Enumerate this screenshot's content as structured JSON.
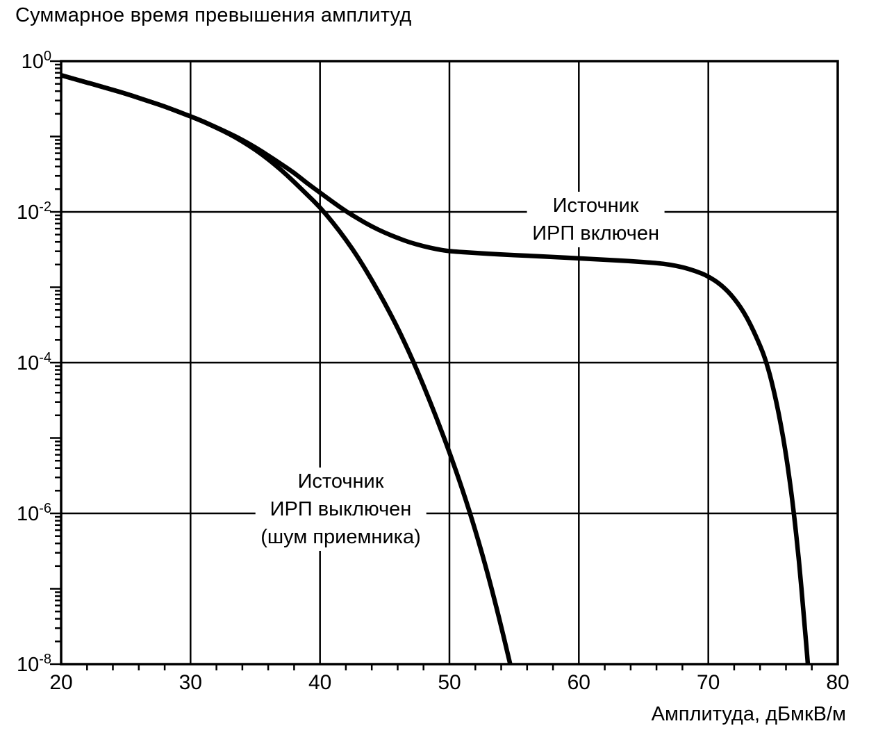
{
  "chart_data": {
    "type": "line",
    "title": "Суммарное время превышения амплитуд",
    "xlabel": "Амплитуда, дБмкВ/м",
    "ylabel": "",
    "x_range": [
      20,
      80
    ],
    "y_range_exponents": [
      -8,
      0
    ],
    "x_ticks": [
      20,
      30,
      40,
      50,
      60,
      70,
      80
    ],
    "x_minor_step": 2,
    "y_ticks": [
      {
        "base": "10",
        "exp_text": "0",
        "exp": 0
      },
      {
        "base": "10",
        "exp_text": "-2",
        "exp": -2
      },
      {
        "base": "10",
        "exp_text": "-4",
        "exp": -4
      },
      {
        "base": "10",
        "exp_text": "-6",
        "exp": -6
      },
      {
        "base": "10",
        "exp_text": "-8",
        "exp": -8
      }
    ],
    "grid_x": [
      30,
      40,
      50,
      60,
      70
    ],
    "grid_y_exponents": [
      -2,
      -4,
      -6
    ],
    "grid": true,
    "legend_position": "none",
    "line_color": "#000000",
    "series": [
      {
        "id": "curve-irp-on",
        "name": "Источник ИРП включен",
        "points": [
          [
            20,
            0.65
          ],
          [
            21,
            0.58
          ],
          [
            22,
            0.52
          ],
          [
            23,
            0.465
          ],
          [
            24,
            0.415
          ],
          [
            25,
            0.37
          ],
          [
            26,
            0.325
          ],
          [
            27,
            0.285
          ],
          [
            28,
            0.25
          ],
          [
            29,
            0.215
          ],
          [
            30,
            0.185
          ],
          [
            31,
            0.158
          ],
          [
            32,
            0.132
          ],
          [
            33,
            0.11
          ],
          [
            34,
            0.09
          ],
          [
            35,
            0.072
          ],
          [
            36,
            0.056
          ],
          [
            37,
            0.043
          ],
          [
            38,
            0.033
          ],
          [
            39,
            0.024
          ],
          [
            40,
            0.018
          ],
          [
            41,
            0.0135
          ],
          [
            42,
            0.0102
          ],
          [
            43,
            0.008
          ],
          [
            44,
            0.0064
          ],
          [
            45,
            0.0053
          ],
          [
            46,
            0.0045
          ],
          [
            47,
            0.0039
          ],
          [
            48,
            0.0035
          ],
          [
            49,
            0.0032
          ],
          [
            50,
            0.003
          ],
          [
            52,
            0.00285
          ],
          [
            54,
            0.00272
          ],
          [
            56,
            0.00262
          ],
          [
            58,
            0.00252
          ],
          [
            60,
            0.00242
          ],
          [
            62,
            0.00232
          ],
          [
            64,
            0.00222
          ],
          [
            66,
            0.0021
          ],
          [
            67,
            0.002
          ],
          [
            68,
            0.00185
          ],
          [
            69,
            0.00165
          ],
          [
            70,
            0.0014
          ],
          [
            71,
            0.00108
          ],
          [
            72,
            0.00072
          ],
          [
            73,
            0.0004
          ],
          [
            74,
            0.00017
          ],
          [
            74.5,
            0.0001
          ],
          [
            75,
            4.8e-05
          ],
          [
            75.5,
            1.9e-05
          ],
          [
            76,
            6.2e-06
          ],
          [
            76.5,
            1.5e-06
          ],
          [
            77,
            2.5e-07
          ],
          [
            77.4,
            4e-08
          ],
          [
            77.7,
            1e-08
          ],
          [
            78,
            2e-09
          ]
        ]
      },
      {
        "id": "curve-irp-off",
        "name": "Источник ИРП выключен (шум приемника)",
        "points": [
          [
            20,
            0.65
          ],
          [
            21,
            0.58
          ],
          [
            22,
            0.52
          ],
          [
            23,
            0.465
          ],
          [
            24,
            0.415
          ],
          [
            25,
            0.37
          ],
          [
            26,
            0.325
          ],
          [
            27,
            0.285
          ],
          [
            28,
            0.25
          ],
          [
            29,
            0.215
          ],
          [
            30,
            0.185
          ],
          [
            31,
            0.157
          ],
          [
            32,
            0.131
          ],
          [
            33,
            0.108
          ],
          [
            34,
            0.086
          ],
          [
            35,
            0.067
          ],
          [
            36,
            0.05
          ],
          [
            37,
            0.036
          ],
          [
            38,
            0.025
          ],
          [
            39,
            0.017
          ],
          [
            40,
            0.0115
          ],
          [
            41,
            0.0072
          ],
          [
            42,
            0.0043
          ],
          [
            43,
            0.0024
          ],
          [
            44,
            0.00125
          ],
          [
            45,
            0.00062
          ],
          [
            46,
            0.00029
          ],
          [
            47,
            0.000125
          ],
          [
            48,
            5e-05
          ],
          [
            49,
            1.85e-05
          ],
          [
            50,
            6.5e-06
          ],
          [
            51,
            2.1e-06
          ],
          [
            52,
            6e-07
          ],
          [
            53,
            1.5e-07
          ],
          [
            54,
            3.2e-08
          ],
          [
            55,
            6e-09
          ]
        ]
      }
    ],
    "annotations": [
      {
        "id": "label-irp-on",
        "text": "Источник\nИРП включен",
        "x": 61.3,
        "y_exp": -2.1
      },
      {
        "id": "label-irp-off",
        "text": "Источник\nИРП выключен\n(шум приемника)",
        "x": 41.6,
        "y_exp": -5.94
      }
    ]
  }
}
